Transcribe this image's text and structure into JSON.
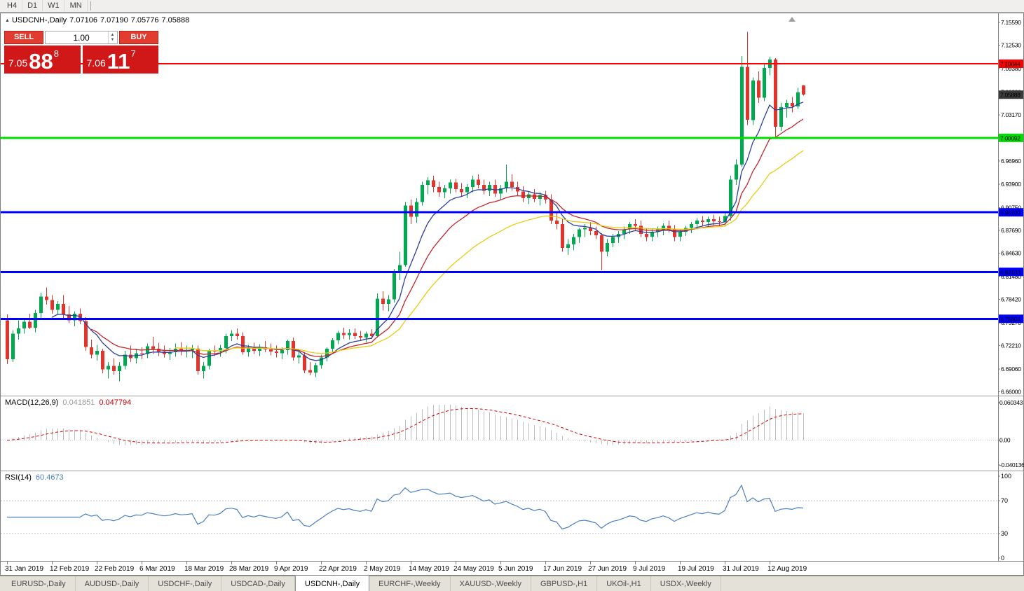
{
  "toolbar": {
    "periods": [
      "H4",
      "D1",
      "W1",
      "MN"
    ]
  },
  "chart_header": {
    "marker": "▲",
    "symbol": "USDCNH-,Daily",
    "open": "7.07106",
    "high": "7.07190",
    "low": "7.05776",
    "close": "7.05888"
  },
  "trade_widget": {
    "sell_label": "SELL",
    "buy_label": "BUY",
    "volume": "1.00",
    "spin_up": "▲",
    "spin_down": "▼",
    "sell_price_main": "7.05",
    "sell_price_big": "88",
    "sell_price_sup": "8",
    "buy_price_main": "7.06",
    "buy_price_big": "11",
    "buy_price_sup": "7"
  },
  "macd_label": {
    "name": "MACD(12,26,9)",
    "main_value": "0.041851",
    "signal_value": "0.047794"
  },
  "rsi_label": {
    "name": "RSI(14)",
    "value": "60.4673"
  },
  "tabs": [
    {
      "label": "EURUSD-,Daily",
      "active": false
    },
    {
      "label": "AUDUSD-,Daily",
      "active": false
    },
    {
      "label": "USDCHF-,Daily",
      "active": false
    },
    {
      "label": "USDCAD-,Daily",
      "active": false
    },
    {
      "label": "USDCNH-,Daily",
      "active": true
    },
    {
      "label": "EURCHF-,Weekly",
      "active": false
    },
    {
      "label": "XAUUSD-,Weekly",
      "active": false
    },
    {
      "label": "GBPUSD-,H1",
      "active": false
    },
    {
      "label": "UKOil-,H1",
      "active": false
    },
    {
      "label": "USDX-,Weekly",
      "active": false
    }
  ],
  "chart_data": {
    "type": "candlestick",
    "symbol": "USDCNH",
    "timeframe": "Daily",
    "ylim": [
      6.6568,
      7.1681
    ],
    "colors": {
      "up": "#00A94F",
      "down": "#E3342B",
      "macd_hist": "#BDBDBD",
      "macd_signal": "#D40000",
      "rsi": "#4A7EBF",
      "current_tag": "#3C3C3C"
    },
    "price_axis_labels": [
      "7.15590",
      "7.12530",
      "7.09380",
      "7.06230",
      "7.03170",
      "7.00020",
      "6.96960",
      "6.93900",
      "6.90750",
      "6.87690",
      "6.84630",
      "6.81480",
      "6.78420",
      "6.75270",
      "6.72210",
      "6.69060",
      "6.66000"
    ],
    "levels": [
      {
        "price": 7.10044,
        "label": "7.10044",
        "color": "#FF0000",
        "width": 2
      },
      {
        "price": 7.00092,
        "label": "7.00092",
        "color": "#00DD00",
        "width": 3
      },
      {
        "price": 6.901,
        "label": "6.90100",
        "color": "#0000FF",
        "width": 3
      },
      {
        "price": 6.82103,
        "label": "6.82103",
        "color": "#0000FF",
        "width": 3
      },
      {
        "price": 6.75804,
        "label": "6.75804",
        "color": "#0000FF",
        "width": 3
      }
    ],
    "current_price": {
      "value": 7.05888,
      "label": "7.05888"
    },
    "moving_averages": [
      {
        "period": 8,
        "color": "#2B3F9E"
      },
      {
        "period": 15,
        "color": "#C0262C"
      },
      {
        "period": 30,
        "color": "#E8CC12"
      }
    ],
    "macd": {
      "params": "12,26,9",
      "ylim": [
        -0.0478,
        0.0706
      ],
      "axis_labels": [
        {
          "value": 0.060343,
          "label": "0.060343"
        },
        {
          "value": 0,
          "label": "0.00"
        },
        {
          "value": -0.040136,
          "label": "-0.040136"
        }
      ]
    },
    "rsi": {
      "period": 14,
      "levels": [
        70,
        30
      ],
      "axis_labels": [
        {
          "value": 100,
          "label": "100"
        },
        {
          "value": 70,
          "label": "70"
        },
        {
          "value": 30,
          "label": "30"
        },
        {
          "value": 0,
          "label": "0"
        }
      ]
    },
    "date_labels": [
      {
        "i": 0,
        "label": "31 Jan 2019"
      },
      {
        "i": 8,
        "label": "12 Feb 2019"
      },
      {
        "i": 16,
        "label": "22 Feb 2019"
      },
      {
        "i": 24,
        "label": "6 Mar 2019"
      },
      {
        "i": 32,
        "label": "18 Mar 2019"
      },
      {
        "i": 40,
        "label": "28 Mar 2019"
      },
      {
        "i": 48,
        "label": "9 Apr 2019"
      },
      {
        "i": 56,
        "label": "22 Apr 2019"
      },
      {
        "i": 64,
        "label": "2 May 2019"
      },
      {
        "i": 72,
        "label": "14 May 2019"
      },
      {
        "i": 80,
        "label": "24 May 2019"
      },
      {
        "i": 88,
        "label": "5 Jun 2019"
      },
      {
        "i": 96,
        "label": "17 Jun 2019"
      },
      {
        "i": 104,
        "label": "27 Jun 2019"
      },
      {
        "i": 112,
        "label": "9 Jul 2019"
      },
      {
        "i": 120,
        "label": "19 Jul 2019"
      },
      {
        "i": 128,
        "label": "31 Jul 2019"
      },
      {
        "i": 136,
        "label": "12 Aug 2019"
      }
    ],
    "candles": [
      [
        6.756,
        6.764,
        6.697,
        6.704
      ],
      [
        6.704,
        6.743,
        6.7,
        6.738
      ],
      [
        6.738,
        6.756,
        6.73,
        6.745
      ],
      [
        6.745,
        6.758,
        6.738,
        6.754
      ],
      [
        6.754,
        6.765,
        6.744,
        6.746
      ],
      [
        6.746,
        6.77,
        6.74,
        6.766
      ],
      [
        6.766,
        6.793,
        6.758,
        6.788
      ],
      [
        6.788,
        6.8,
        6.777,
        6.783
      ],
      [
        6.783,
        6.79,
        6.765,
        6.77
      ],
      [
        6.77,
        6.782,
        6.764,
        6.778
      ],
      [
        6.778,
        6.79,
        6.758,
        6.764
      ],
      [
        6.764,
        6.775,
        6.752,
        6.756
      ],
      [
        6.756,
        6.768,
        6.748,
        6.765
      ],
      [
        6.765,
        6.772,
        6.751,
        6.755
      ],
      [
        6.755,
        6.76,
        6.715,
        6.72
      ],
      [
        6.72,
        6.73,
        6.705,
        6.71
      ],
      [
        6.71,
        6.723,
        6.702,
        6.715
      ],
      [
        6.715,
        6.718,
        6.685,
        6.69
      ],
      [
        6.69,
        6.7,
        6.678,
        6.695
      ],
      [
        6.695,
        6.705,
        6.683,
        6.688
      ],
      [
        6.688,
        6.7,
        6.674,
        6.695
      ],
      [
        6.695,
        6.715,
        6.69,
        6.71
      ],
      [
        6.71,
        6.722,
        6.7,
        6.705
      ],
      [
        6.705,
        6.718,
        6.698,
        6.712
      ],
      [
        6.712,
        6.72,
        6.704,
        6.711
      ],
      [
        6.711,
        6.725,
        6.705,
        6.721
      ],
      [
        6.721,
        6.734,
        6.711,
        6.718
      ],
      [
        6.718,
        6.726,
        6.708,
        6.714
      ],
      [
        6.714,
        6.722,
        6.706,
        6.711
      ],
      [
        6.711,
        6.719,
        6.703,
        6.713
      ],
      [
        6.713,
        6.725,
        6.707,
        6.718
      ],
      [
        6.718,
        6.727,
        6.709,
        6.715
      ],
      [
        6.715,
        6.722,
        6.706,
        6.716
      ],
      [
        6.716,
        6.723,
        6.705,
        6.718
      ],
      [
        6.718,
        6.722,
        6.683,
        6.688
      ],
      [
        6.688,
        6.7,
        6.678,
        6.695
      ],
      [
        6.695,
        6.718,
        6.69,
        6.715
      ],
      [
        6.715,
        6.722,
        6.708,
        6.714
      ],
      [
        6.714,
        6.723,
        6.707,
        6.719
      ],
      [
        6.719,
        6.738,
        6.712,
        6.735
      ],
      [
        6.735,
        6.743,
        6.728,
        6.738
      ],
      [
        6.738,
        6.745,
        6.73,
        6.735
      ],
      [
        6.735,
        6.74,
        6.71,
        6.713
      ],
      [
        6.713,
        6.723,
        6.707,
        6.719
      ],
      [
        6.719,
        6.726,
        6.711,
        6.715
      ],
      [
        6.715,
        6.724,
        6.708,
        6.72
      ],
      [
        6.72,
        6.728,
        6.713,
        6.717
      ],
      [
        6.717,
        6.725,
        6.709,
        6.714
      ],
      [
        6.714,
        6.722,
        6.706,
        6.712
      ],
      [
        6.712,
        6.72,
        6.704,
        6.716
      ],
      [
        6.716,
        6.73,
        6.71,
        6.728
      ],
      [
        6.728,
        6.733,
        6.702,
        6.706
      ],
      [
        6.706,
        6.715,
        6.698,
        6.709
      ],
      [
        6.709,
        6.713,
        6.685,
        6.689
      ],
      [
        6.689,
        6.7,
        6.682,
        6.686
      ],
      [
        6.686,
        6.699,
        6.68,
        6.696
      ],
      [
        6.696,
        6.71,
        6.691,
        6.706
      ],
      [
        6.706,
        6.72,
        6.701,
        6.718
      ],
      [
        6.718,
        6.732,
        6.713,
        6.729
      ],
      [
        6.729,
        6.742,
        6.724,
        6.739
      ],
      [
        6.739,
        6.746,
        6.731,
        6.736
      ],
      [
        6.736,
        6.744,
        6.73,
        6.739
      ],
      [
        6.739,
        6.745,
        6.731,
        6.735
      ],
      [
        6.735,
        6.742,
        6.728,
        6.733
      ],
      [
        6.733,
        6.741,
        6.727,
        6.738
      ],
      [
        6.738,
        6.744,
        6.731,
        6.735
      ],
      [
        6.735,
        6.792,
        6.733,
        6.785
      ],
      [
        6.785,
        6.795,
        6.769,
        6.778
      ],
      [
        6.778,
        6.79,
        6.768,
        6.784
      ],
      [
        6.784,
        6.825,
        6.78,
        6.821
      ],
      [
        6.821,
        6.848,
        6.81,
        6.83
      ],
      [
        6.83,
        6.915,
        6.828,
        6.91
      ],
      [
        6.91,
        6.918,
        6.885,
        6.895
      ],
      [
        6.895,
        6.92,
        6.887,
        6.915
      ],
      [
        6.915,
        6.942,
        6.91,
        6.938
      ],
      [
        6.938,
        6.948,
        6.925,
        6.944
      ],
      [
        6.944,
        6.95,
        6.928,
        6.935
      ],
      [
        6.935,
        6.942,
        6.922,
        6.928
      ],
      [
        6.928,
        6.938,
        6.92,
        6.933
      ],
      [
        6.933,
        6.945,
        6.926,
        6.941
      ],
      [
        6.941,
        6.946,
        6.928,
        6.932
      ],
      [
        6.932,
        6.94,
        6.923,
        6.928
      ],
      [
        6.928,
        6.939,
        6.92,
        6.935
      ],
      [
        6.935,
        6.95,
        6.928,
        6.945
      ],
      [
        6.945,
        6.952,
        6.933,
        6.938
      ],
      [
        6.938,
        6.945,
        6.925,
        6.93
      ],
      [
        6.93,
        6.942,
        6.923,
        6.938
      ],
      [
        6.938,
        6.945,
        6.922,
        6.926
      ],
      [
        6.926,
        6.938,
        6.918,
        6.933
      ],
      [
        6.933,
        6.965,
        6.928,
        6.942
      ],
      [
        6.942,
        6.952,
        6.93,
        6.935
      ],
      [
        6.935,
        6.942,
        6.923,
        6.929
      ],
      [
        6.929,
        6.936,
        6.915,
        6.92
      ],
      [
        6.92,
        6.929,
        6.912,
        6.925
      ],
      [
        6.925,
        6.932,
        6.915,
        6.919
      ],
      [
        6.919,
        6.928,
        6.91,
        6.924
      ],
      [
        6.924,
        6.93,
        6.913,
        6.918
      ],
      [
        6.918,
        6.925,
        6.885,
        6.89
      ],
      [
        6.89,
        6.902,
        6.878,
        6.885
      ],
      [
        6.885,
        6.892,
        6.848,
        6.853
      ],
      [
        6.853,
        6.865,
        6.844,
        6.858
      ],
      [
        6.858,
        6.872,
        6.85,
        6.868
      ],
      [
        6.868,
        6.88,
        6.86,
        6.878
      ],
      [
        6.878,
        6.885,
        6.868,
        6.88
      ],
      [
        6.88,
        6.888,
        6.87,
        6.876
      ],
      [
        6.876,
        6.882,
        6.865,
        6.87
      ],
      [
        6.87,
        6.873,
        6.823,
        6.848
      ],
      [
        6.848,
        6.865,
        6.842,
        6.86
      ],
      [
        6.86,
        6.872,
        6.854,
        6.868
      ],
      [
        6.868,
        6.876,
        6.86,
        6.872
      ],
      [
        6.872,
        6.882,
        6.865,
        6.878
      ],
      [
        6.878,
        6.888,
        6.872,
        6.885
      ],
      [
        6.885,
        6.892,
        6.877,
        6.883
      ],
      [
        6.883,
        6.89,
        6.868,
        6.872
      ],
      [
        6.872,
        6.88,
        6.862,
        6.868
      ],
      [
        6.868,
        6.878,
        6.862,
        6.875
      ],
      [
        6.875,
        6.882,
        6.868,
        6.878
      ],
      [
        6.878,
        6.886,
        6.87,
        6.883
      ],
      [
        6.883,
        6.89,
        6.874,
        6.878
      ],
      [
        6.878,
        6.884,
        6.862,
        6.868
      ],
      [
        6.868,
        6.878,
        6.862,
        6.875
      ],
      [
        6.875,
        6.883,
        6.869,
        6.88
      ],
      [
        6.88,
        6.888,
        6.873,
        6.885
      ],
      [
        6.885,
        6.893,
        6.878,
        6.89
      ],
      [
        6.89,
        6.896,
        6.882,
        6.888
      ],
      [
        6.888,
        6.895,
        6.881,
        6.892
      ],
      [
        6.892,
        6.898,
        6.884,
        6.889
      ],
      [
        6.889,
        6.895,
        6.882,
        6.888
      ],
      [
        6.888,
        6.9,
        6.882,
        6.896
      ],
      [
        6.896,
        6.95,
        6.89,
        6.945
      ],
      [
        6.945,
        6.972,
        6.938,
        6.965
      ],
      [
        6.965,
        7.111,
        6.962,
        7.096
      ],
      [
        7.096,
        7.143,
        7.018,
        7.025
      ],
      [
        7.025,
        7.082,
        7.018,
        7.078
      ],
      [
        7.078,
        7.09,
        7.048,
        7.055
      ],
      [
        7.055,
        7.1,
        7.05,
        7.095
      ],
      [
        7.095,
        7.11,
        7.085,
        7.106
      ],
      [
        7.106,
        7.108,
        7.002,
        7.016
      ],
      [
        7.016,
        7.048,
        7.01,
        7.042
      ],
      [
        7.042,
        7.052,
        7.028,
        7.048
      ],
      [
        7.048,
        7.056,
        7.035,
        7.043
      ],
      [
        7.043,
        7.068,
        7.04,
        7.062
      ],
      [
        7.07106,
        7.0719,
        7.05776,
        7.05888
      ]
    ]
  }
}
